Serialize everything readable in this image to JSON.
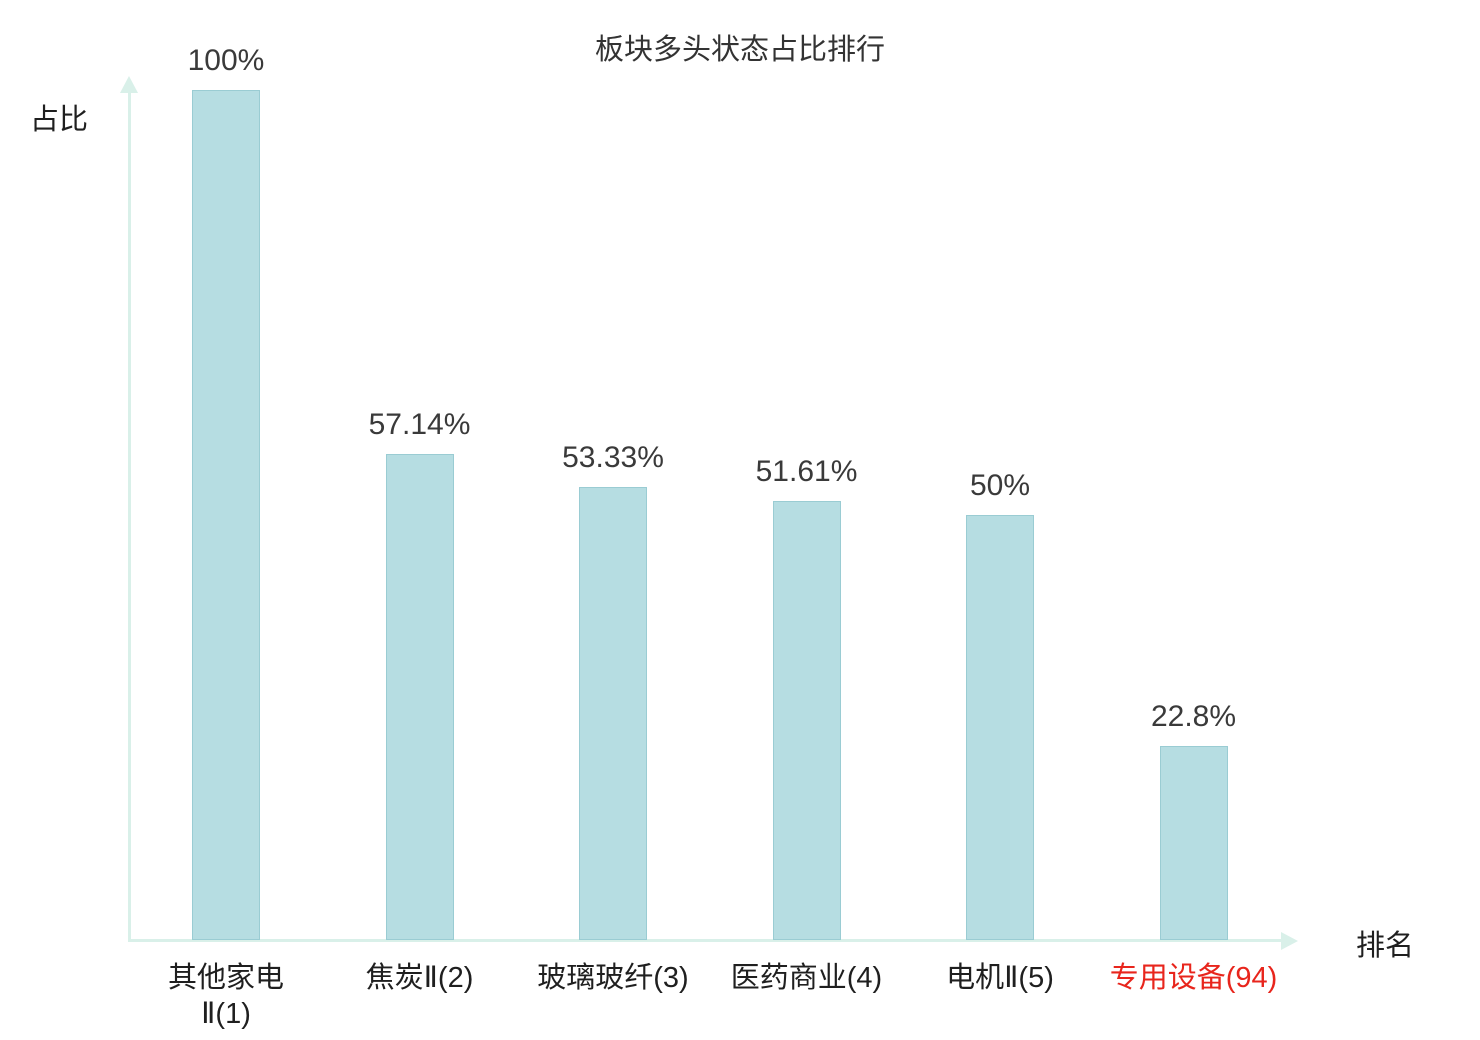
{
  "chart_data": {
    "type": "bar",
    "title": "板块多头状态占比排行",
    "xlabel": "排名",
    "ylabel": "占比",
    "categories": [
      "其他家电\nⅡ(1)",
      "焦炭Ⅱ(2)",
      "玻璃玻纤(3)",
      "医药商业(4)",
      "电机Ⅱ(5)",
      "专用设备(94)"
    ],
    "values": [
      100,
      57.14,
      53.33,
      51.61,
      50,
      22.8
    ],
    "value_labels": [
      "100%",
      "57.14%",
      "53.33%",
      "51.61%",
      "50%",
      "22.8%"
    ],
    "ylim": [
      0,
      100
    ],
    "grid": false,
    "legend": "none",
    "highlight_index": 5,
    "bar_color": "#b6dde2",
    "bar_border_color": "#9accd3",
    "axis_color": "#d9f0e9",
    "value_text_color": "#3a3a3a",
    "category_text_color": "#1f1f1f",
    "highlight_color": "#e8251c"
  }
}
